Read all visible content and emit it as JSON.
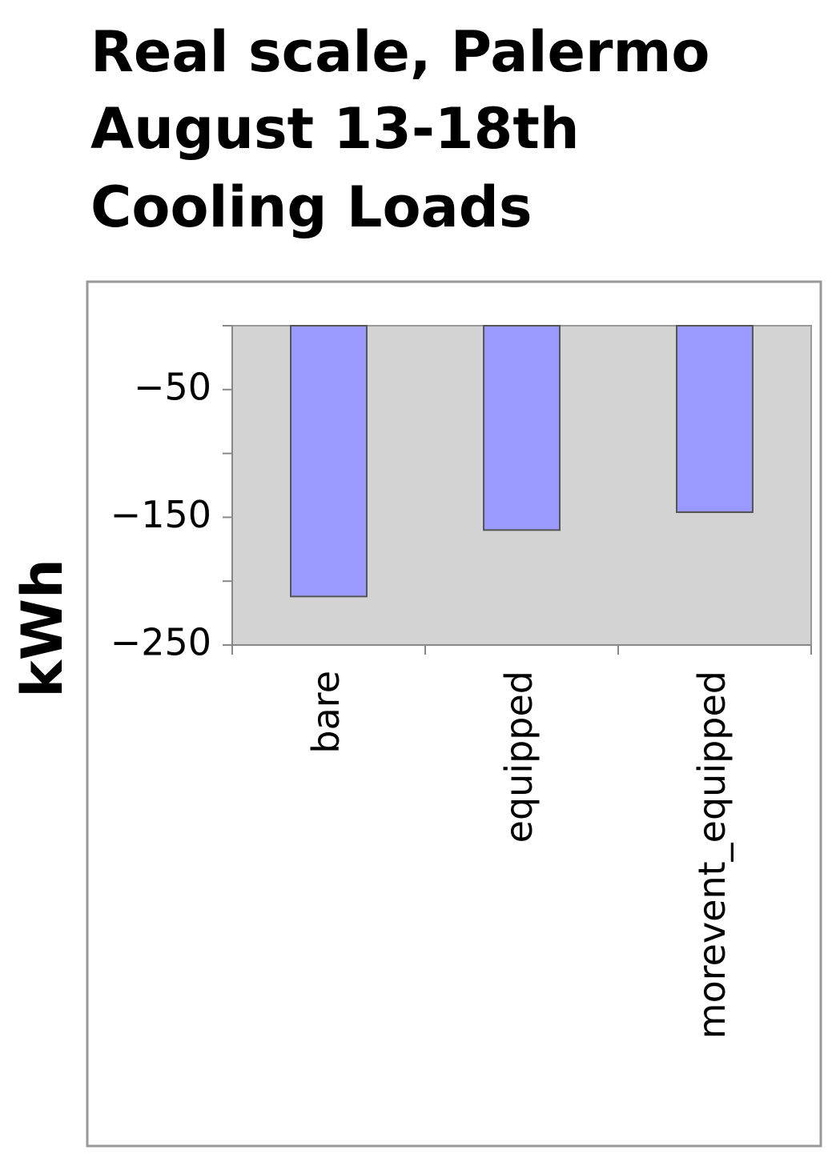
{
  "chart_data": {
    "type": "bar",
    "title": [
      "Real scale, Palermo",
      "August 13-18th",
      "Cooling Loads"
    ],
    "y_label": "kWh",
    "categories": [
      "bare",
      "equipped",
      "morevent_equipped"
    ],
    "values": [
      -212,
      -160,
      -146
    ],
    "color": "#9999ff",
    "ylim": [
      -250,
      0
    ],
    "yticks": [
      {
        "value": -50,
        "label": "−50"
      },
      {
        "value": -150,
        "label": "−150"
      },
      {
        "value": -250,
        "label": "−250"
      }
    ],
    "yminorticks": [
      0,
      -100,
      -200
    ],
    "grid": false
  }
}
